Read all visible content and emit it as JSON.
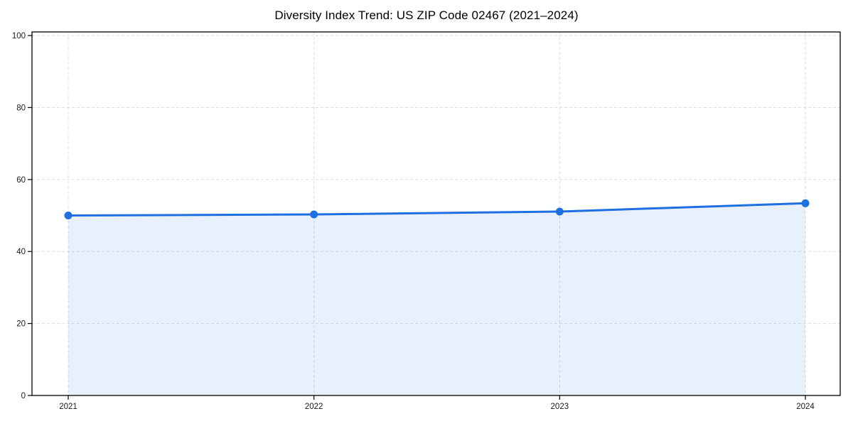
{
  "page": {
    "background": "#ffffff"
  },
  "chart_data": {
    "type": "line",
    "title": "Diversity Index Trend: US ZIP Code 02467 (2021–2024)",
    "x": [
      "2021",
      "2022",
      "2023",
      "2024"
    ],
    "series": [
      {
        "name": "Diversity Index",
        "values": [
          50.0,
          50.3,
          51.1,
          53.4
        ]
      }
    ],
    "markers": true,
    "area_fill": true,
    "xlabel": "",
    "ylabel": "",
    "ylim": [
      0,
      101
    ],
    "yticks": [
      0,
      20,
      40,
      60,
      80,
      100
    ],
    "xtick_labels": [
      "2021",
      "2022",
      "2023",
      "2024"
    ],
    "grid": "dashed",
    "legend_position": "none",
    "colors": {
      "line": "#1E6FE0",
      "marker": "#1E6FE0",
      "area": "rgba(30,111,224,0.10)",
      "grid": "#dcdcdc",
      "axis": "#000000",
      "tick_label": "#1a1a1a",
      "title": "#000000",
      "background": "#ffffff"
    }
  }
}
